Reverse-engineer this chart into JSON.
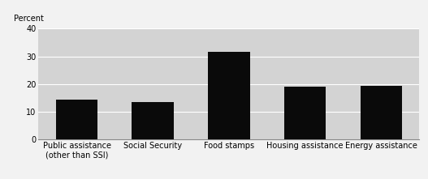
{
  "categories": [
    "Public assistance\n(other than SSI)",
    "Social Security",
    "Food stamps",
    "Housing assistance",
    "Energy assistance"
  ],
  "values": [
    14.5,
    13.5,
    31.5,
    19.0,
    19.5
  ],
  "bar_color": "#0a0a0a",
  "plot_background": "#d3d3d3",
  "figure_background": "#f2f2f2",
  "ylabel": "Percent",
  "ylim": [
    0,
    40
  ],
  "yticks": [
    0,
    10,
    20,
    30,
    40
  ],
  "grid_color": "#ffffff",
  "bar_width": 0.55,
  "label_fontsize": 7.0,
  "ylabel_fontsize": 7.0
}
